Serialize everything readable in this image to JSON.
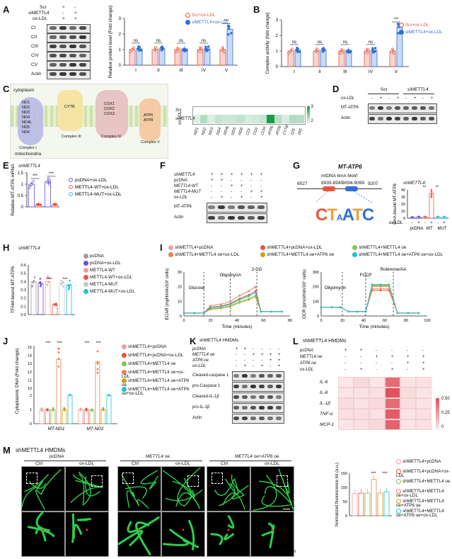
{
  "panels": {
    "A": "A",
    "B": "B",
    "C": "C",
    "D": "D",
    "E": "E",
    "F": "F",
    "G": "G",
    "H": "H",
    "I": "I",
    "J": "J",
    "K": "K",
    "L": "L",
    "M": "M"
  },
  "colors": {
    "scr": "#e8553f",
    "si": "#2f6fd6",
    "green": "#1a9a4a",
    "heat_hi": "#e0505a",
    "heat_lo": "#fbeaea"
  },
  "a": {
    "rows": [
      "Scr",
      "siMETTL4",
      "ox-LDL"
    ],
    "scr_marks": [
      "+",
      "-",
      "+"
    ],
    "si_marks": [
      "-",
      "+",
      "+"
    ],
    "bands": [
      "CI",
      "CII",
      "CIII",
      "CIV",
      "CV",
      "Actin"
    ],
    "legend": [
      "Scr+ox-LDL",
      "siMETTL4+ox-LDL"
    ],
    "ylabel": "Relative protein level (Fold change)",
    "sig": [
      "ns",
      "ns",
      "ns",
      "ns",
      "***"
    ]
  },
  "b": {
    "legend": [
      "Scr+ox-LDL",
      "siMETTL4+ox-LDL"
    ],
    "ylabel": "Complex activity (fold change)",
    "sig": [
      "ns",
      "ns",
      "ns",
      "ns",
      "***"
    ]
  },
  "c": {
    "membrane_labels": [
      "cytoplasm",
      "mitochondria"
    ],
    "complexes": [
      {
        "name": "Complex I",
        "genes": [
          "ND1",
          "ND2",
          "ND3",
          "ND4",
          "ND4L",
          "ND5",
          "ND6"
        ]
      },
      {
        "name": "Complex III",
        "genes": [
          "CYTB"
        ]
      },
      {
        "name": "Complex IV",
        "genes": [
          "COX1",
          "COX2",
          "COX3"
        ]
      },
      {
        "name": "Complex V",
        "genes": [
          "ATP6",
          "ATP8"
        ]
      }
    ],
    "heat_rows": [
      "Scr",
      "siMETTL4"
    ],
    "heat_group": "ox-LDL",
    "heat_cols": [
      "ND1",
      "ND2",
      "ND3",
      "ND4",
      "ND4L",
      "ND5",
      "ND6",
      "COI",
      "COII",
      "COIII",
      "ATP6",
      "ATP8",
      "CYTB",
      "12S",
      "16S"
    ],
    "scale": [
      "3",
      "2"
    ]
  },
  "d": {
    "groups": [
      "Scr",
      "siMETTL4"
    ],
    "row": "ox-LDL",
    "marks": [
      "-",
      "+",
      "-",
      "+",
      "-",
      "+",
      "-",
      "+"
    ],
    "bands": [
      "MT-ATP6",
      "Actin"
    ]
  },
  "e": {
    "title": "shMETTL4",
    "ylabel": "Relative MT-ATP6 mRNA",
    "legend": [
      "pcDNA+ox-LDL",
      "METTL4-WT+ox-LDL",
      "METTL4-MUT+ox-LDL"
    ],
    "sig": [
      "***",
      "***"
    ]
  },
  "f": {
    "rows": [
      "shMETTL4",
      "pcDNA",
      "METTL4-WT",
      "METTL4-MUT",
      "ox-LDL"
    ],
    "marks": [
      [
        "+",
        "+",
        "+",
        "+",
        "+",
        "+"
      ],
      [
        "+",
        "+",
        "-",
        "-",
        "-",
        "-"
      ],
      [
        "-",
        "-",
        "+",
        "+",
        "-",
        "-"
      ],
      [
        "-",
        "-",
        "-",
        "-",
        "+",
        "+"
      ],
      [
        "-",
        "+",
        "-",
        "+",
        "-",
        "+"
      ]
    ],
    "bands": [
      "MT-ATP6",
      "Actin"
    ]
  },
  "g": {
    "title": "MT-ATP6",
    "positions": [
      "8527",
      "8935-8940",
      "9094-9099",
      "9207"
    ],
    "motif": "mtDNA 6mA Motif",
    "logo": "CTCATC",
    "inset_title": "shMETTL4:",
    "ylabel": "6mA-bound MT-ATP6",
    "ticks": [
      "0",
      "10",
      "20",
      "30",
      "40"
    ],
    "groups": [
      "pcDNA",
      "WT",
      "MUT"
    ],
    "oxldl": "ox-LDL",
    "marks": [
      "-",
      "+",
      "-",
      "+",
      "-",
      "+"
    ],
    "sig": [
      "**",
      "**"
    ],
    "values": [
      1.5,
      2.0,
      2.0,
      35,
      2.0,
      2.0
    ]
  },
  "h": {
    "title": "shMETTL4",
    "ylabel": "TFAM-bound MT-ATP6",
    "legend": [
      "pcDNA",
      "pcDNA+ox-LDL",
      "METTL4-WT",
      "METTL4-WT+ox-LDL",
      "METTL4-MUT",
      "METTL4-MUT+ox-LDL"
    ],
    "sig": [
      "***",
      "***"
    ]
  },
  "i": {
    "legend": [
      "shMETTL4+pcDNA",
      "shMETTL4+pcDNA+ox-LDL",
      "shMETTL4+METTL4 oe",
      "shMETTL4+METTL4 oe+ox-LDL",
      "shMETTL4+METTL4 oe+ATP6 oe",
      "shMETTL4+METTL4 oe+ATP6 oe+ox-LDL"
    ],
    "ecar_ylabel": "ECAR (mpH/min/10⁵ cells)",
    "ocr_ylabel": "OCR (pmol/min/10⁵ cells)",
    "xlabel": "Time (minutes)",
    "ecar_injections": [
      "Glucose",
      "Oligomycin",
      "2-DG"
    ],
    "ocr_injections": [
      "Oligomycin",
      "FCCP",
      "Rotenone/AA"
    ]
  },
  "j": {
    "ylabel": "Cytoplasmic DNA (Fold change)",
    "cats": [
      "MT-ND1",
      "MT-ND2"
    ],
    "legend": [
      "shMETTL4+pcDNA",
      "shMETTL4+pcDNA+ox-LDL",
      "shMETTL4+METTL4 oe",
      "shMETTL4+METTL4 oe+ox-LDL",
      "shMETTL4+METTL4 oe+ATP6 oe",
      "shMETTL4+METTL4 oe+ATP6 oe+ox-LDL"
    ]
  },
  "k": {
    "title": "shMETTL4 HMDMs",
    "rows": [
      "pcDNA",
      "METTL4 oe",
      "ATP6 oe",
      "ox-LDL"
    ],
    "marks": [
      [
        "+",
        "+",
        "-",
        "-",
        "-",
        "-"
      ],
      [
        "-",
        "-",
        "+",
        "+",
        "+",
        "+"
      ],
      [
        "-",
        "-",
        "-",
        "-",
        "+",
        "+"
      ],
      [
        "-",
        "+",
        "-",
        "+",
        "-",
        "+"
      ]
    ],
    "bands": [
      "Cleaved-caspase 1",
      "pro-Caspase 1",
      "Cleaved-IL-1β",
      "pro-IL-1β",
      "Actin"
    ]
  },
  "l": {
    "title": "shMETTL4 HMDMs",
    "rows": [
      "pcDNA",
      "METTL4 oe",
      "ATP6 oe",
      "ox-LDL"
    ],
    "marks": [
      [
        "+",
        "+",
        "-",
        "-",
        "-",
        "-"
      ],
      [
        "-",
        "-",
        "+",
        "+",
        "+",
        "+"
      ],
      [
        "-",
        "-",
        "-",
        "-",
        "+",
        "+"
      ],
      [
        "-",
        "+",
        "-",
        "+",
        "-",
        "+"
      ]
    ],
    "genes": [
      "IL-6",
      "IL-8",
      "IL-1β",
      "TNF-α",
      "MCP-1"
    ],
    "scale": [
      "0.50",
      "0.25",
      "0"
    ]
  },
  "m": {
    "title": "shMETTL4 HMDMs",
    "groups": [
      "pcDNA",
      "METTL4 oe",
      "METTL4 oe+ATP6 oe"
    ],
    "conds": [
      "Ctrl",
      "ox-LDL"
    ],
    "scale1": "1 μm",
    "scale2": "0.5 μm",
    "ylabel": "Normalized fluorescence Int (a.u.)",
    "ticks": [
      "0",
      "50",
      "100",
      "150"
    ],
    "legend": [
      "shMETTL4+pcDNA",
      "shMETTL4+pcDNA+ox-LDL",
      "shMETTL4+METTL4 oe",
      "shMETTL4+METTL4 oe+ox-LDL",
      "shMETTL4+METTL4 oe+ATP6 oe",
      "shMETTL4+METTL4 oe+ATP6 oe+ox-LDL"
    ],
    "values": [
      78,
      80,
      80,
      128,
      80,
      85
    ],
    "sig": [
      "***",
      "***"
    ]
  }
}
